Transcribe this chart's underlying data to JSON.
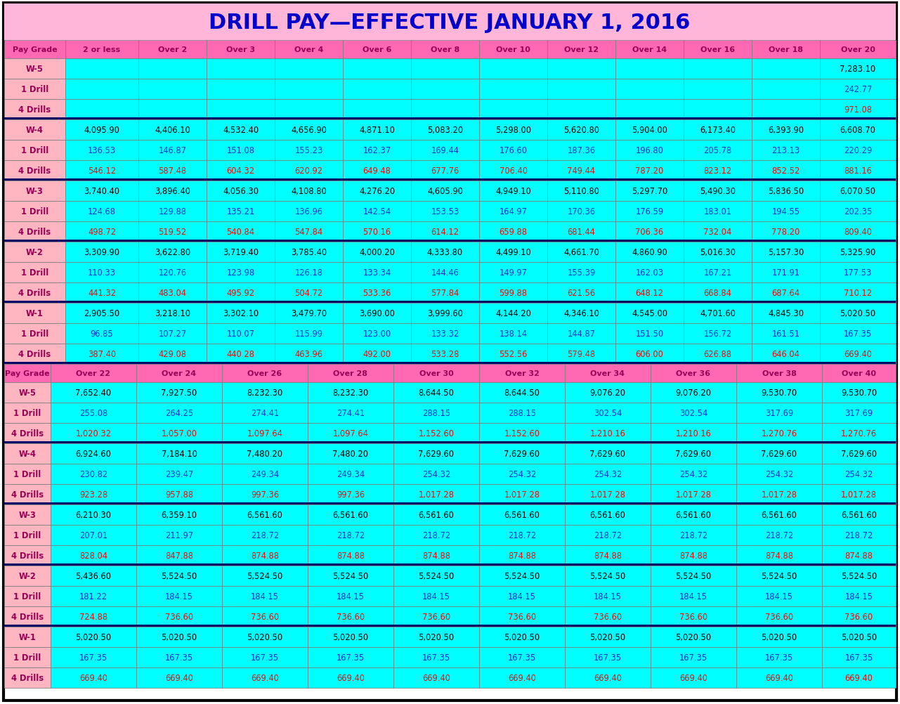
{
  "title": "DRILL PAY—EFFECTIVE JANUARY 1, 2016",
  "title_color": "#0000CC",
  "top_headers": [
    "Pay Grade",
    "2 or less",
    "Over 2",
    "Over 3",
    "Over 4",
    "Over 6",
    "Over 8",
    "Over 10",
    "Over 12",
    "Over 14",
    "Over 16",
    "Over 18",
    "Over 20"
  ],
  "bottom_headers": [
    "Pay Grade",
    "Over 22",
    "Over 24",
    "Over 26",
    "Over 28",
    "Over 30",
    "Over 32",
    "Over 34",
    "Over 36",
    "Over 38",
    "Over 40"
  ],
  "top_rows": [
    [
      "W-5",
      "",
      "",
      "",
      "",
      "",
      "",
      "",
      "",
      "",
      "",
      "",
      "7,283.10"
    ],
    [
      "1 Drill",
      "",
      "",
      "",
      "",
      "",
      "",
      "",
      "",
      "",
      "",
      "",
      "242.77"
    ],
    [
      "4 Drills",
      "",
      "",
      "",
      "",
      "",
      "",
      "",
      "",
      "",
      "",
      "",
      "971.08"
    ],
    [
      "W-4",
      "4,095.90",
      "4,406.10",
      "4,532.40",
      "4,656.90",
      "4,871.10",
      "5,083.20",
      "5,298.00",
      "5,620.80",
      "5,904.00",
      "6,173.40",
      "6,393.90",
      "6,608.70"
    ],
    [
      "1 Drill",
      "136.53",
      "146.87",
      "151.08",
      "155.23",
      "162.37",
      "169.44",
      "176.60",
      "187.36",
      "196.80",
      "205.78",
      "213.13",
      "220.29"
    ],
    [
      "4 Drills",
      "546.12",
      "587.48",
      "604.32",
      "620.92",
      "649.48",
      "677.76",
      "706.40",
      "749.44",
      "787.20",
      "823.12",
      "852.52",
      "881.16"
    ],
    [
      "W-3",
      "3,740.40",
      "3,896.40",
      "4,056.30",
      "4,108.80",
      "4,276.20",
      "4,605.90",
      "4,949.10",
      "5,110.80",
      "5,297.70",
      "5,490.30",
      "5,836.50",
      "6,070.50"
    ],
    [
      "1 Drill",
      "124.68",
      "129.88",
      "135.21",
      "136.96",
      "142.54",
      "153.53",
      "164.97",
      "170.36",
      "176.59",
      "183.01",
      "194.55",
      "202.35"
    ],
    [
      "4 Drills",
      "498.72",
      "519.52",
      "540.84",
      "547.84",
      "570.16",
      "614.12",
      "659.88",
      "681.44",
      "706.36",
      "732.04",
      "778.20",
      "809.40"
    ],
    [
      "W-2",
      "3,309.90",
      "3,622.80",
      "3,719.40",
      "3,785.40",
      "4,000.20",
      "4,333.80",
      "4,499.10",
      "4,661.70",
      "4,860.90",
      "5,016.30",
      "5,157.30",
      "5,325.90"
    ],
    [
      "1 Drill",
      "110.33",
      "120.76",
      "123.98",
      "126.18",
      "133.34",
      "144.46",
      "149.97",
      "155.39",
      "162.03",
      "167.21",
      "171.91",
      "177.53"
    ],
    [
      "4 Drills",
      "441.32",
      "483.04",
      "495.92",
      "504.72",
      "533.36",
      "577.84",
      "599.88",
      "621.56",
      "648.12",
      "668.84",
      "687.64",
      "710.12"
    ],
    [
      "W-1",
      "2,905.50",
      "3,218.10",
      "3,302.10",
      "3,479.70",
      "3,690.00",
      "3,999.60",
      "4,144.20",
      "4,346.10",
      "4,545.00",
      "4,701.60",
      "4,845.30",
      "5,020.50"
    ],
    [
      "1 Drill",
      "96.85",
      "107.27",
      "110.07",
      "115.99",
      "123.00",
      "133.32",
      "138.14",
      "144.87",
      "151.50",
      "156.72",
      "161.51",
      "167.35"
    ],
    [
      "4 Drills",
      "387.40",
      "429.08",
      "440.28",
      "463.96",
      "492.00",
      "533.28",
      "552.56",
      "579.48",
      "606.00",
      "626.88",
      "646.04",
      "669.40"
    ]
  ],
  "bottom_rows": [
    [
      "W-5",
      "7,652.40",
      "7,927.50",
      "8,232.30",
      "8,232.30",
      "8,644.50",
      "8,644.50",
      "9,076.20",
      "9,076.20",
      "9,530.70",
      "9,530.70"
    ],
    [
      "1 Drill",
      "255.08",
      "264.25",
      "274.41",
      "274.41",
      "288.15",
      "288.15",
      "302.54",
      "302.54",
      "317.69",
      "317.69"
    ],
    [
      "4 Drills",
      "1,020.32",
      "1,057.00",
      "1,097.64",
      "1,097.64",
      "1,152.60",
      "1,152.60",
      "1,210.16",
      "1,210.16",
      "1,270.76",
      "1,270.76"
    ],
    [
      "W-4",
      "6,924.60",
      "7,184.10",
      "7,480.20",
      "7,480.20",
      "7,629.60",
      "7,629.60",
      "7,629.60",
      "7,629.60",
      "7,629.60",
      "7,629.60"
    ],
    [
      "1 Drill",
      "230.82",
      "239.47",
      "249.34",
      "249.34",
      "254.32",
      "254.32",
      "254.32",
      "254.32",
      "254.32",
      "254.32"
    ],
    [
      "4 Drills",
      "923.28",
      "957.88",
      "997.36",
      "997.36",
      "1,017.28",
      "1,017.28",
      "1,017.28",
      "1,017.28",
      "1,017.28",
      "1,017.28"
    ],
    [
      "W-3",
      "6,210.30",
      "6,359.10",
      "6,561.60",
      "6,561.60",
      "6,561.60",
      "6,561.60",
      "6,561.60",
      "6,561.60",
      "6,561.60",
      "6,561.60"
    ],
    [
      "1 Drill",
      "207.01",
      "211.97",
      "218.72",
      "218.72",
      "218.72",
      "218.72",
      "218.72",
      "218.72",
      "218.72",
      "218.72"
    ],
    [
      "4 Drills",
      "828.04",
      "847.88",
      "874.88",
      "874.88",
      "874.88",
      "874.88",
      "874.88",
      "874.88",
      "874.88",
      "874.88"
    ],
    [
      "W-2",
      "5,436.60",
      "5,524.50",
      "5,524.50",
      "5,524.50",
      "5,524.50",
      "5,524.50",
      "5,524.50",
      "5,524.50",
      "5,524.50",
      "5,524.50"
    ],
    [
      "1 Drill",
      "181.22",
      "184.15",
      "184.15",
      "184.15",
      "184.15",
      "184.15",
      "184.15",
      "184.15",
      "184.15",
      "184.15"
    ],
    [
      "4 Drills",
      "724.88",
      "736.60",
      "736.60",
      "736.60",
      "736.60",
      "736.60",
      "736.60",
      "736.60",
      "736.60",
      "736.60"
    ],
    [
      "W-1",
      "5,020.50",
      "5,020.50",
      "5,020.50",
      "5,020.50",
      "5,020.50",
      "5,020.50",
      "5,020.50",
      "5,020.50",
      "5,020.50",
      "5,020.50"
    ],
    [
      "1 Drill",
      "167.35",
      "167.35",
      "167.35",
      "167.35",
      "167.35",
      "167.35",
      "167.35",
      "167.35",
      "167.35",
      "167.35"
    ],
    [
      "4 Drills",
      "669.40",
      "669.40",
      "669.40",
      "669.40",
      "669.40",
      "669.40",
      "669.40",
      "669.40",
      "669.40",
      "669.40"
    ]
  ],
  "row_types": [
    "W",
    "1Drill",
    "4Drills",
    "W",
    "1Drill",
    "4Drills",
    "W",
    "1Drill",
    "4Drills",
    "W",
    "1Drill",
    "4Drills",
    "W",
    "1Drill",
    "4Drills"
  ],
  "section_breaks": [
    3,
    6,
    9,
    12
  ],
  "header_pink": "#FF69B4",
  "header_text": "#990055",
  "cell_cyan": "#00FFFF",
  "cell_pink": "#FFB6C1",
  "text_black": "#000000",
  "text_blue": "#0033CC",
  "text_red": "#FF0000",
  "text_pink_label": "#990055",
  "sep_color": "#000066",
  "title_bg": "#FFB6D9"
}
